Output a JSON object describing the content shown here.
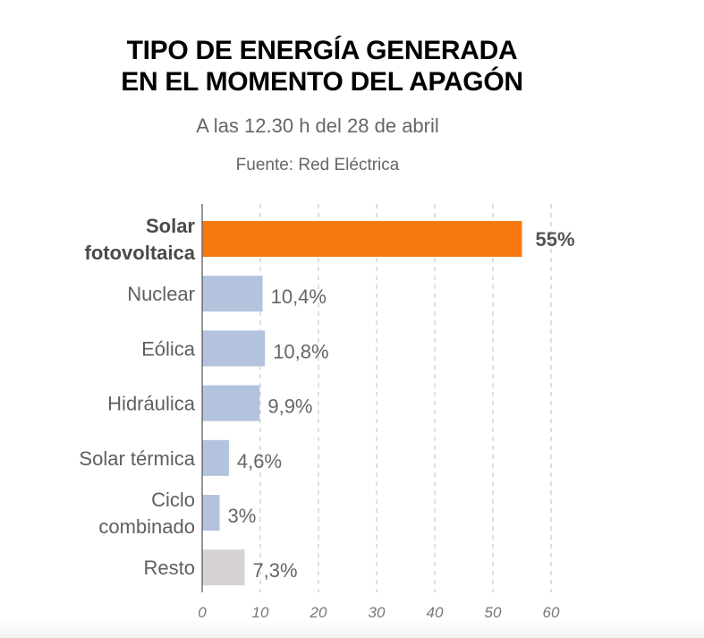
{
  "header": {
    "title_line1": "TIPO DE ENERGÍA GENERADA",
    "title_line2": "EN EL MOMENTO DEL APAGÓN",
    "subtitle": "A las 12.30 h del 28 de abril",
    "source": "Fuente: Red Eléctrica"
  },
  "chart_data": {
    "type": "bar",
    "orientation": "horizontal",
    "title": "TIPO DE ENERGÍA GENERADA EN EL MOMENTO DEL APAGÓN",
    "subtitle": "A las 12.30 h del 28 de abril",
    "source": "Fuente: Red Eléctrica",
    "xlabel": "",
    "ylabel": "",
    "xlim": [
      0,
      60
    ],
    "ticks": [
      0,
      10,
      20,
      30,
      40,
      50,
      60
    ],
    "grid": true,
    "categories": [
      {
        "label": [
          "Solar",
          "fotovoltaica"
        ],
        "value": 55,
        "value_label": "55%",
        "color": "#f77811",
        "highlight": true
      },
      {
        "label": [
          "Nuclear"
        ],
        "value": 10.4,
        "value_label": "10,4%",
        "color": "#b3c3de",
        "highlight": false
      },
      {
        "label": [
          "Eólica"
        ],
        "value": 10.8,
        "value_label": "10,8%",
        "color": "#b3c3de",
        "highlight": false
      },
      {
        "label": [
          "Hidráulica"
        ],
        "value": 9.9,
        "value_label": "9,9%",
        "color": "#b3c3de",
        "highlight": false
      },
      {
        "label": [
          "Solar térmica"
        ],
        "value": 4.6,
        "value_label": "4,6%",
        "color": "#b3c3de",
        "highlight": false
      },
      {
        "label": [
          "Ciclo",
          "combinado"
        ],
        "value": 3,
        "value_label": "3%",
        "color": "#b3c3de",
        "highlight": false
      },
      {
        "label": [
          "Resto"
        ],
        "value": 7.3,
        "value_label": "7,3%",
        "color": "#d6d3d2",
        "highlight": false
      }
    ]
  }
}
